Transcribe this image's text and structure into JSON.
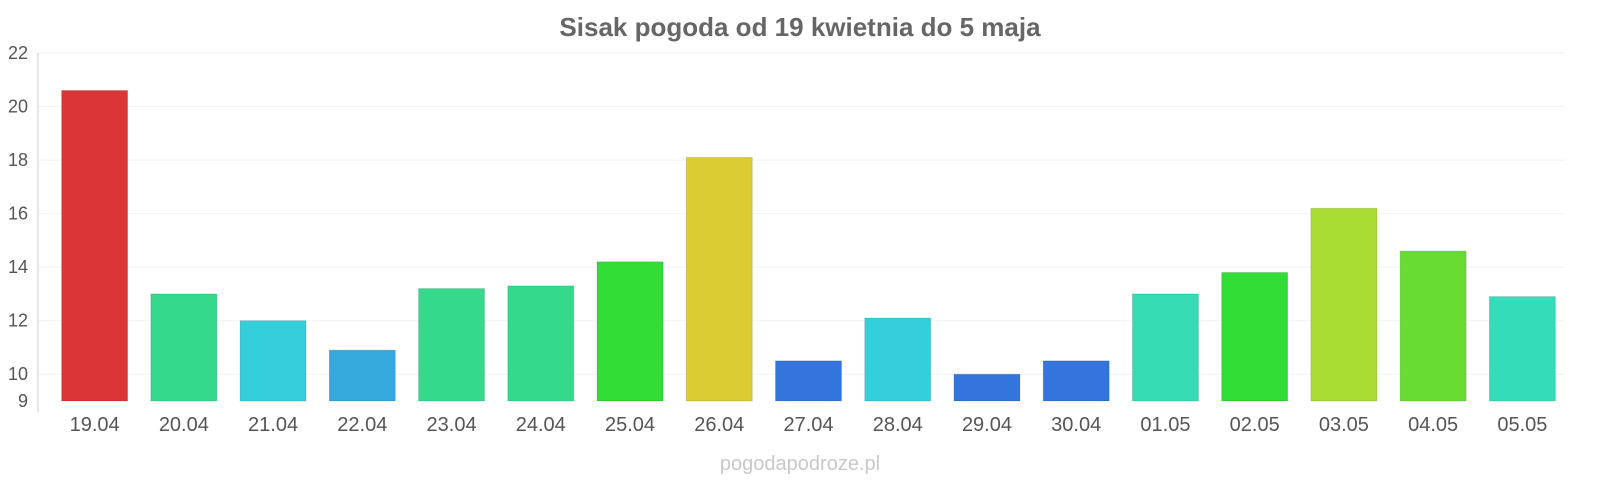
{
  "chart_data": {
    "type": "bar",
    "title": "Sisak pogoda od 19 kwietnia do 5 maja",
    "xlabel": "",
    "ylabel": "",
    "ylim": [
      9,
      22
    ],
    "yticks": [
      9,
      10,
      12,
      14,
      16,
      18,
      20,
      22
    ],
    "grid": true,
    "categories": [
      "19.04",
      "20.04",
      "21.04",
      "22.04",
      "23.04",
      "24.04",
      "25.04",
      "26.04",
      "27.04",
      "28.04",
      "29.04",
      "30.04",
      "01.05",
      "02.05",
      "03.05",
      "04.05",
      "05.05"
    ],
    "values": [
      20.6,
      13.0,
      12.0,
      10.9,
      13.2,
      13.3,
      14.2,
      18.1,
      10.5,
      12.1,
      10.0,
      10.5,
      13.0,
      13.8,
      16.2,
      14.6,
      12.9
    ],
    "colors": [
      "#dc3535",
      "#35d98c",
      "#35cfdc",
      "#35a8dc",
      "#35d98c",
      "#35d98c",
      "#31dc35",
      "#dccc33",
      "#3375dc",
      "#35cfdc",
      "#3375dc",
      "#3375dc",
      "#35dcb3",
      "#31dc35",
      "#a9dc33",
      "#68dc33",
      "#35dcb9"
    ]
  },
  "watermark": "pogodapodroze.pl"
}
